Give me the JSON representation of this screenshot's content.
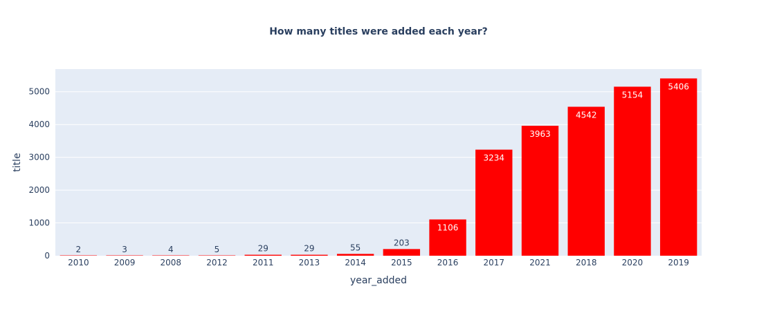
{
  "chart_data": {
    "type": "bar",
    "title": "How many titles were added each year?",
    "xlabel": "year_added",
    "ylabel": "title",
    "categories": [
      "2010",
      "2009",
      "2008",
      "2012",
      "2011",
      "2013",
      "2014",
      "2015",
      "2016",
      "2017",
      "2021",
      "2018",
      "2020",
      "2019"
    ],
    "values": [
      2,
      3,
      4,
      5,
      29,
      29,
      55,
      203,
      1106,
      3234,
      3963,
      4542,
      5154,
      5406
    ],
    "ylim": [
      0,
      5690
    ],
    "yticks": [
      0,
      1000,
      2000,
      3000,
      4000,
      5000
    ],
    "grid": true,
    "bar_color": "#ff0000",
    "plot_background": "#e5ecf6",
    "legend": "none"
  }
}
